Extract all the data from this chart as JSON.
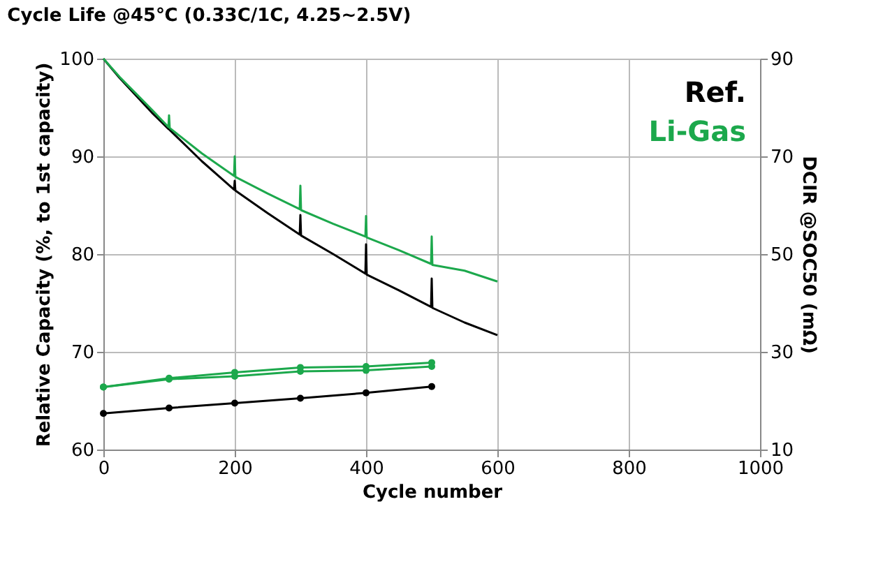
{
  "chart_data": {
    "type": "line",
    "title": "Cycle Life @45℃ (0.33C/1C, 4.25~2.5V)",
    "xlabel": "Cycle number",
    "ylabel": "Relative Capacity  (%, to 1st capacity)",
    "y2label": "DCIR @SOC50 (mΩ)",
    "xlim": [
      0,
      1000
    ],
    "xticks": [
      0,
      200,
      400,
      600,
      800,
      1000
    ],
    "ylim": [
      60,
      100
    ],
    "yticks": [
      60,
      70,
      80,
      90,
      100
    ],
    "y2lim": [
      10,
      90
    ],
    "y2ticks": [
      10,
      30,
      50,
      70,
      90
    ],
    "grid": true,
    "legend": "top right",
    "series": [
      {
        "name": "Ref.",
        "color": "#000000",
        "marker": "none",
        "x": [
          0,
          25,
          50,
          75,
          99,
          100,
          101,
          150,
          199,
          200,
          201,
          250,
          299,
          300,
          301,
          350,
          399,
          400,
          401,
          450,
          499,
          500,
          501,
          550,
          600
        ],
        "values": [
          100,
          98,
          96.2,
          94.4,
          92.8,
          93.2,
          92.7,
          89.5,
          86.6,
          87.5,
          86.5,
          84.2,
          82,
          84,
          81.9,
          80,
          78,
          81,
          77.9,
          76.3,
          74.6,
          77.5,
          74.5,
          73,
          71.7
        ]
      },
      {
        "name": "Li-Gas",
        "color": "#1ca84c",
        "marker": "none",
        "x": [
          0,
          25,
          50,
          75,
          99,
          100,
          101,
          150,
          199,
          200,
          201,
          250,
          299,
          300,
          301,
          350,
          399,
          400,
          401,
          450,
          499,
          500,
          501,
          550,
          600
        ],
        "values": [
          100,
          98.1,
          96.4,
          94.7,
          93,
          94.2,
          92.9,
          90.3,
          88,
          90,
          87.9,
          86.2,
          84.6,
          87,
          84.5,
          83.1,
          81.8,
          83.9,
          81.7,
          80.4,
          79,
          81.8,
          78.9,
          78.3,
          77.2
        ]
      },
      {
        "color": "#000000",
        "axis": "y2",
        "marker": "circle",
        "x": [
          0,
          100,
          200,
          300,
          400,
          500
        ],
        "values": [
          17.4,
          18.5,
          19.5,
          20.5,
          21.6,
          22.9
        ]
      },
      {
        "color": "#1ca84c",
        "axis": "y2",
        "marker": "circle",
        "x": [
          0,
          100,
          200,
          300,
          400,
          500
        ],
        "values": [
          22.8,
          24.6,
          25.8,
          26.8,
          27,
          27.8
        ]
      },
      {
        "color": "#1ca84c",
        "axis": "y2",
        "marker": "circle",
        "x": [
          0,
          100,
          200,
          300,
          400,
          500
        ],
        "values": [
          22.8,
          24.4,
          25,
          26,
          26.2,
          27
        ]
      }
    ]
  }
}
